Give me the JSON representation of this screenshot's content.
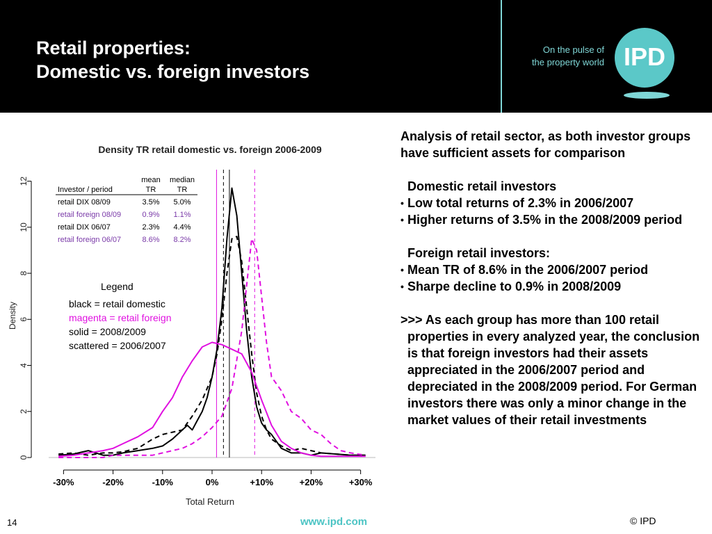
{
  "slide": {
    "title_line1": "Retail properties:",
    "title_line2": "Domestic vs. foreign investors",
    "tagline_line1": "On the pulse of",
    "tagline_line2": "the property world",
    "logo": "IPD",
    "page_number": "14",
    "url": "www.ipd.com",
    "copyright": "© IPD"
  },
  "analysis": {
    "intro": "Analysis of retail sector, as both investor groups have sufficient assets for comparison",
    "domestic_heading": "Domestic retail investors",
    "domestic_bullets": [
      "Low total returns of 2.3% in 2006/2007",
      "Higher returns of 3.5% in the 2008/2009 period"
    ],
    "foreign_heading": "Foreign retail investors:",
    "foreign_bullets": [
      "Mean TR of 8.6% in the 2006/2007 period",
      "Sharpe decline to 0.9% in 2008/2009"
    ],
    "conclusion": ">>> As each group has more than 100 retail properties in every analyzed year, the conclusion is that foreign investors had their assets appreciated in the 2006/2007 period and depreciated in the 2008/2009 period. For German investors there was only a minor change in the market values of their retail investments"
  },
  "chart_data": {
    "type": "line",
    "title": "Density TR retail domestic vs. foreign 2006-2009",
    "xlabel": "Total Return",
    "ylabel": "Density",
    "xlim": [
      -0.33,
      0.33
    ],
    "ylim": [
      0,
      12.5
    ],
    "x_ticks": [
      -0.3,
      -0.2,
      -0.1,
      0,
      0.1,
      0.2,
      0.3
    ],
    "x_tick_labels": [
      "-30%",
      "-20%",
      "-10%",
      "0%",
      "+10%",
      "+20%",
      "+30%"
    ],
    "y_ticks": [
      0,
      2,
      4,
      6,
      8,
      10,
      12
    ],
    "y_tick_labels": [
      "0",
      "2",
      "4",
      "6",
      "8",
      "10",
      "12"
    ],
    "colors": {
      "domestic": "#000000",
      "foreign": "#e010e0",
      "foreign_table": "#7a3aa8",
      "table_text": "#000000"
    },
    "table": {
      "headers": [
        "Investor / period",
        "mean TR",
        "median TR"
      ],
      "rows": [
        {
          "label": "retail DIX 08/09",
          "mean": "3.5%",
          "median": "5.0%",
          "group": "domestic"
        },
        {
          "label": "retail foreign 08/09",
          "mean": "0.9%",
          "median": "1.1%",
          "group": "foreign"
        },
        {
          "label": "retail DIX 06/07",
          "mean": "2.3%",
          "median": "4.4%",
          "group": "domestic"
        },
        {
          "label": "retail foreign 06/07",
          "mean": "8.6%",
          "median": "8.2%",
          "group": "foreign"
        }
      ]
    },
    "legend": {
      "title": "Legend",
      "items": [
        "black = retail domestic",
        "magenta = retail foreign",
        "solid = 2008/2009",
        "scattered = 2006/2007"
      ]
    },
    "vlines": [
      {
        "x": 0.035,
        "color": "domestic",
        "style": "solid"
      },
      {
        "x": 0.023,
        "color": "domestic",
        "style": "dashed"
      },
      {
        "x": 0.009,
        "color": "foreign",
        "style": "solid"
      },
      {
        "x": 0.086,
        "color": "foreign",
        "style": "dashed"
      }
    ],
    "series": [
      {
        "name": "retail DIX 08/09",
        "color": "domestic",
        "dash": false,
        "x": [
          -0.31,
          -0.28,
          -0.25,
          -0.22,
          -0.2,
          -0.18,
          -0.15,
          -0.12,
          -0.1,
          -0.08,
          -0.06,
          -0.05,
          -0.04,
          -0.03,
          -0.02,
          -0.01,
          0,
          0.01,
          0.02,
          0.03,
          0.04,
          0.05,
          0.06,
          0.07,
          0.08,
          0.09,
          0.1,
          0.11,
          0.12,
          0.14,
          0.16,
          0.18,
          0.2,
          0.22,
          0.25,
          0.28,
          0.31
        ],
        "y": [
          0.1,
          0.15,
          0.3,
          0.1,
          0.1,
          0.2,
          0.3,
          0.4,
          0.5,
          0.8,
          1.2,
          1.4,
          1.2,
          1.6,
          2.0,
          2.6,
          3.5,
          4.7,
          6.5,
          9.5,
          11.7,
          10.5,
          8.0,
          5.5,
          3.5,
          2.2,
          1.5,
          1.2,
          1.0,
          0.4,
          0.2,
          0.2,
          0.1,
          0.2,
          0.15,
          0.1,
          0.1
        ]
      },
      {
        "name": "retail DIX 06/07",
        "color": "domestic",
        "dash": true,
        "x": [
          -0.31,
          -0.28,
          -0.25,
          -0.22,
          -0.2,
          -0.18,
          -0.15,
          -0.12,
          -0.1,
          -0.08,
          -0.06,
          -0.04,
          -0.02,
          0,
          0.01,
          0.02,
          0.03,
          0.04,
          0.05,
          0.06,
          0.07,
          0.08,
          0.09,
          0.1,
          0.11,
          0.12,
          0.14,
          0.16,
          0.18,
          0.2,
          0.22,
          0.25,
          0.28,
          0.31
        ],
        "y": [
          0.15,
          0.2,
          0.1,
          0.2,
          0.2,
          0.25,
          0.4,
          0.8,
          1.0,
          1.1,
          1.2,
          1.8,
          2.5,
          3.5,
          4.5,
          6.0,
          8.0,
          9.5,
          9.6,
          8.5,
          6.5,
          4.5,
          2.8,
          1.8,
          1.2,
          0.8,
          0.5,
          0.3,
          0.4,
          0.3,
          0.2,
          0.15,
          0.1,
          0.1
        ]
      },
      {
        "name": "retail foreign 08/09",
        "color": "foreign",
        "dash": false,
        "x": [
          -0.31,
          -0.28,
          -0.25,
          -0.22,
          -0.2,
          -0.18,
          -0.15,
          -0.12,
          -0.1,
          -0.08,
          -0.06,
          -0.04,
          -0.02,
          0,
          0.02,
          0.04,
          0.06,
          0.08,
          0.1,
          0.12,
          0.14,
          0.16,
          0.18,
          0.2,
          0.22,
          0.25,
          0.28,
          0.31
        ],
        "y": [
          0.05,
          0.1,
          0.2,
          0.3,
          0.4,
          0.6,
          0.9,
          1.3,
          2.0,
          2.6,
          3.5,
          4.2,
          4.8,
          5.0,
          4.9,
          4.7,
          4.5,
          3.7,
          2.5,
          1.4,
          0.7,
          0.4,
          0.2,
          0.1,
          0.05,
          0.05,
          0.05,
          0.05
        ]
      },
      {
        "name": "retail foreign 06/07",
        "color": "foreign",
        "dash": true,
        "x": [
          -0.31,
          -0.28,
          -0.25,
          -0.22,
          -0.2,
          -0.18,
          -0.15,
          -0.12,
          -0.1,
          -0.08,
          -0.06,
          -0.04,
          -0.02,
          0,
          0.02,
          0.04,
          0.06,
          0.07,
          0.08,
          0.09,
          0.1,
          0.11,
          0.12,
          0.14,
          0.16,
          0.18,
          0.2,
          0.22,
          0.24,
          0.26,
          0.28,
          0.31
        ],
        "y": [
          0.0,
          0.0,
          0.0,
          0.0,
          0.1,
          0.1,
          0.1,
          0.1,
          0.2,
          0.3,
          0.4,
          0.6,
          0.9,
          1.3,
          1.8,
          3.0,
          5.5,
          7.5,
          9.5,
          9.0,
          7.0,
          5.0,
          3.5,
          2.9,
          2.0,
          1.7,
          1.2,
          1.0,
          0.6,
          0.3,
          0.2,
          0.1
        ]
      }
    ]
  }
}
